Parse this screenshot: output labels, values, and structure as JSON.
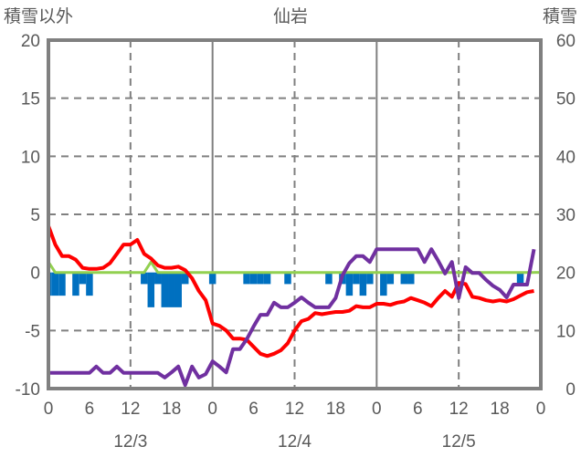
{
  "chart_data": {
    "type": "line",
    "title": "仙岩",
    "left_axis_label": "積雪以外",
    "right_axis_label": "積雪",
    "left_ylim": [
      -10,
      20
    ],
    "left_ticks": [
      20,
      15,
      10,
      5,
      0,
      -5,
      -10
    ],
    "right_ylim": [
      0,
      60
    ],
    "right_ticks": [
      60,
      50,
      40,
      30,
      20,
      10,
      0
    ],
    "x_ticks": [
      "0",
      "6",
      "12",
      "18",
      "0",
      "6",
      "12",
      "18",
      "0",
      "6",
      "12",
      "18",
      "0"
    ],
    "date_labels": [
      "12/3",
      "12/4",
      "12/5"
    ],
    "x_hours": 72,
    "grid": true,
    "colors": {
      "temp": "#ff0000",
      "snow_depth": "#7030a0",
      "green": "#92d050",
      "bars": "#0070c0",
      "frame": "#808080"
    },
    "series": [
      {
        "name": "temperature",
        "axis": "left",
        "kind": "line",
        "color": "#ff0000",
        "values": [
          4.0,
          2.4,
          1.4,
          1.4,
          1.1,
          0.4,
          0.3,
          0.3,
          0.4,
          0.8,
          1.6,
          2.4,
          2.4,
          2.8,
          1.6,
          1.2,
          0.6,
          0.4,
          0.4,
          0.5,
          0.2,
          -0.5,
          -1.6,
          -2.4,
          -4.4,
          -4.6,
          -5.0,
          -5.7,
          -5.7,
          -5.8,
          -6.4,
          -7.0,
          -7.2,
          -7.0,
          -6.7,
          -6.1,
          -5.0,
          -4.2,
          -4.0,
          -3.5,
          -3.6,
          -3.5,
          -3.4,
          -3.4,
          -3.3,
          -2.9,
          -3.0,
          -3.0,
          -2.7,
          -2.7,
          -2.8,
          -2.6,
          -2.5,
          -2.2,
          -2.4,
          -2.6,
          -2.9,
          -2.2,
          -1.6,
          -2.1,
          -0.9,
          -1.0,
          -2.1,
          -2.2,
          -2.4,
          -2.5,
          -2.4,
          -2.5,
          -2.3,
          -2.0,
          -1.7,
          -1.6
        ]
      },
      {
        "name": "snow_depth",
        "axis": "right",
        "kind": "line",
        "color": "#7030a0",
        "values": [
          2.7,
          2.7,
          2.7,
          2.7,
          2.7,
          2.7,
          2.7,
          3.8,
          2.7,
          2.7,
          3.8,
          2.7,
          2.7,
          2.7,
          2.7,
          2.7,
          2.7,
          1.9,
          2.8,
          3.8,
          0.6,
          3.8,
          1.9,
          2.5,
          4.7,
          3.8,
          2.8,
          6.8,
          6.8,
          8.5,
          10.7,
          12.7,
          12.7,
          14.8,
          14.0,
          14.0,
          14.8,
          15.7,
          14.8,
          14.0,
          14.0,
          14.0,
          15.6,
          19.5,
          21.6,
          22.8,
          22.8,
          21.8,
          24,
          24,
          24,
          24,
          24,
          24,
          24,
          21.8,
          24,
          22,
          19.8,
          21.8,
          15.6,
          20.9,
          19.9,
          19.9,
          18.7,
          17.7,
          17.0,
          15.7,
          17.9,
          17.9,
          17.9,
          24
        ]
      },
      {
        "name": "green_series",
        "axis": "left",
        "kind": "line",
        "color": "#92d050",
        "values": [
          0.9,
          0,
          0,
          0,
          0,
          0,
          0,
          0,
          0,
          0,
          0,
          0,
          0,
          0,
          0,
          0.9,
          0,
          0,
          0,
          0,
          0,
          0,
          0,
          0,
          0,
          0,
          0,
          0,
          0,
          0,
          0,
          0,
          0,
          0,
          0,
          0,
          0,
          0,
          0,
          0,
          0,
          0,
          0,
          0,
          0,
          0,
          0,
          0,
          0,
          0,
          0,
          0,
          0,
          0,
          0,
          0,
          0,
          0,
          0,
          0,
          0,
          0,
          0,
          0,
          0,
          0,
          0,
          0,
          0,
          0,
          0,
          0
        ]
      },
      {
        "name": "bars",
        "axis": "left",
        "kind": "bar",
        "color": "#0070c0",
        "values": [
          -2,
          -2,
          -2,
          0,
          -2,
          -1,
          -2,
          0,
          0,
          0,
          0,
          0,
          0,
          0,
          -1,
          -3,
          -1,
          -3,
          -3,
          -3,
          -1,
          0,
          0,
          0,
          -1,
          0,
          0,
          0,
          0,
          -1,
          -1,
          -1,
          -1,
          0,
          0,
          -1,
          0,
          0,
          0,
          0,
          0,
          -1,
          0,
          -1,
          -2,
          -1,
          -2,
          -1,
          0,
          -2,
          -1,
          0,
          -1,
          -1,
          0,
          0,
          0,
          0,
          0,
          0,
          0,
          0,
          0,
          0,
          0,
          0,
          0,
          0,
          0,
          -1,
          0,
          0
        ]
      }
    ]
  }
}
